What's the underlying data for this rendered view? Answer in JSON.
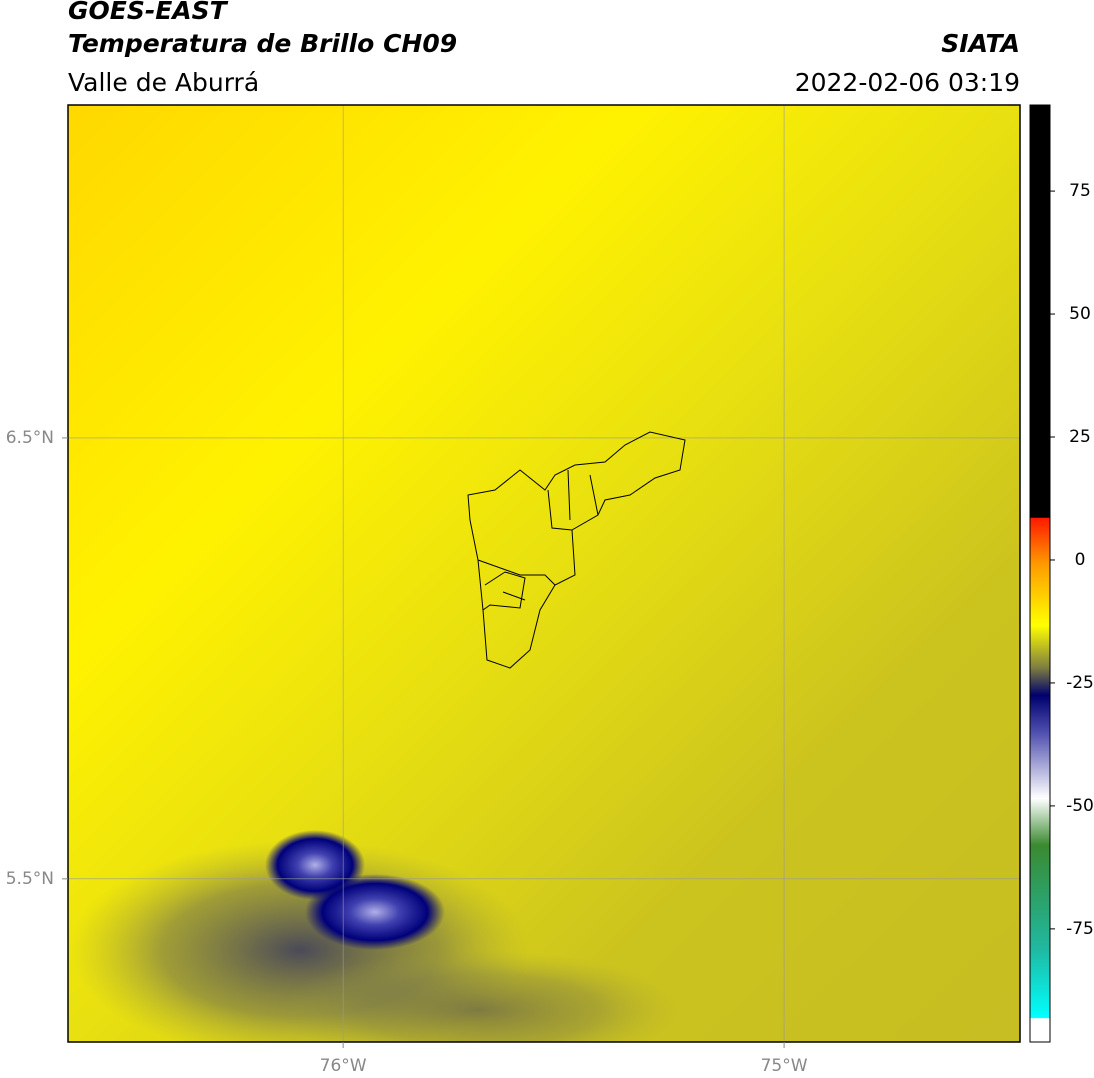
{
  "header": {
    "satellite": "GOES-EAST",
    "product": "Temperatura de Brillo CH09",
    "region": "Valle de Aburrá",
    "agency": "SIATA",
    "datetime": "2022-02-06 03:19"
  },
  "map": {
    "xlim": [
      -76.624,
      -74.465
    ],
    "ylim": [
      5.13,
      7.255
    ],
    "xticks": [
      {
        "value": -76,
        "label": "76°W"
      },
      {
        "value": -75,
        "label": "75°W"
      }
    ],
    "yticks": [
      {
        "value": 6.5,
        "label": "6.5°N"
      },
      {
        "value": 5.5,
        "label": "5.5°N"
      }
    ],
    "grid": true
  },
  "colorbar": {
    "lim": [
      -98,
      92.5
    ],
    "ticks": [
      75,
      50,
      25,
      0,
      -25,
      -50,
      -75
    ]
  }
}
